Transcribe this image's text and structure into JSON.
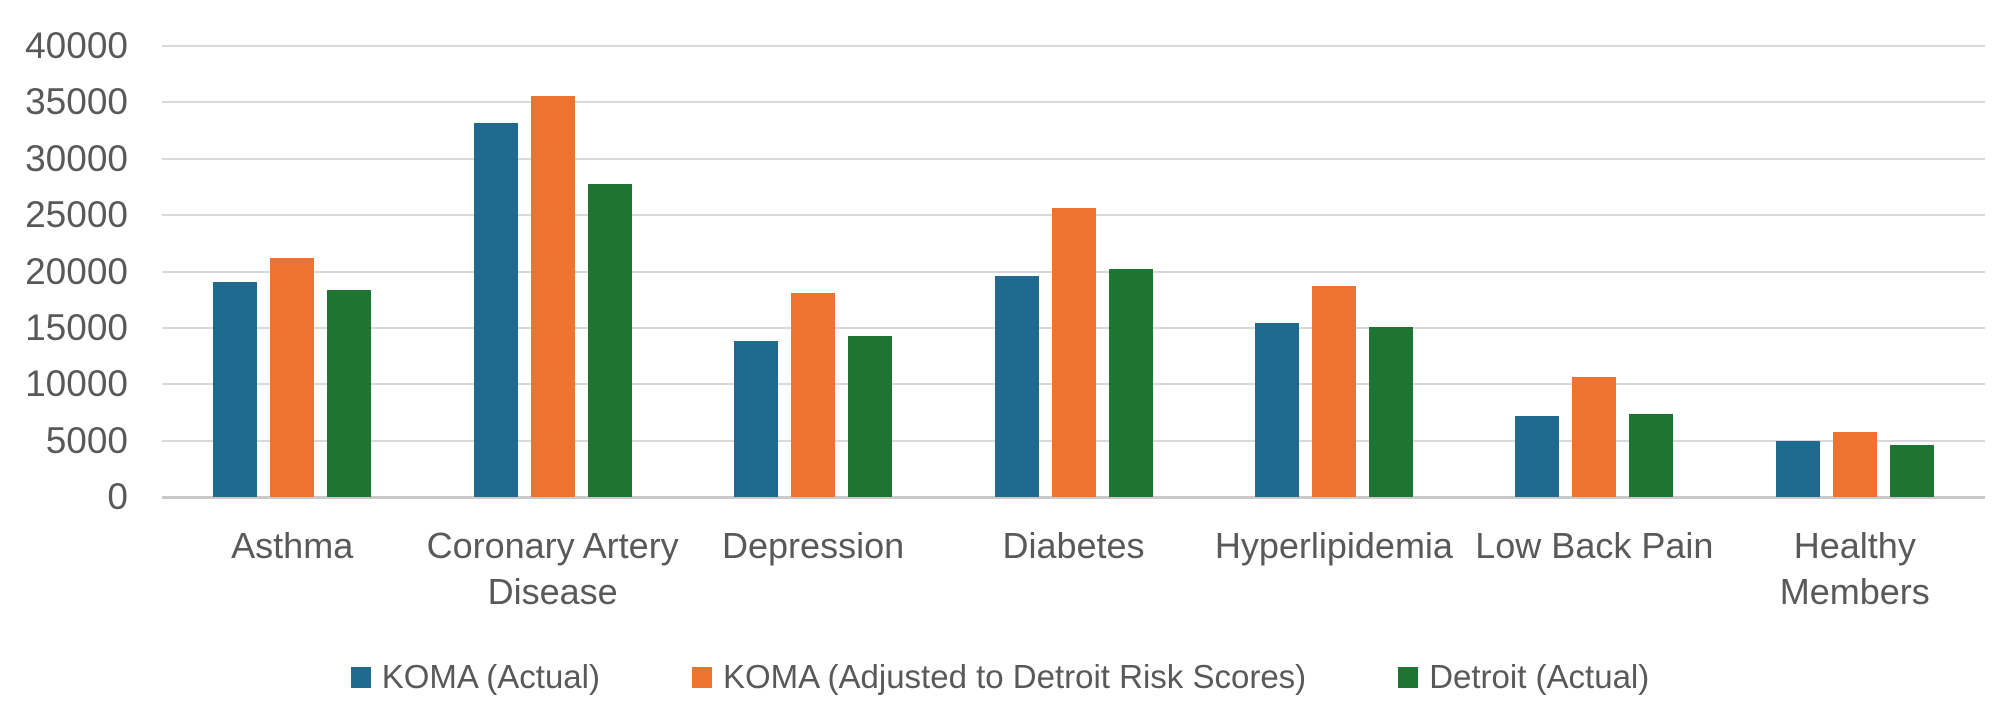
{
  "chart_data": {
    "type": "bar",
    "title": "",
    "categories": [
      "Asthma",
      "Coronary Artery Disease",
      "Depression",
      "Diabetes",
      "Hyperlipidemia",
      "Low Back Pain",
      "Healthy Members"
    ],
    "series": [
      {
        "name": "KOMA (Actual)",
        "color": "#20698F",
        "values": [
          19100,
          33200,
          13800,
          19600,
          15400,
          7200,
          5000
        ]
      },
      {
        "name": "KOMA (Adjusted to Detroit Risk Scores)",
        "color": "#EC7331",
        "values": [
          21200,
          35600,
          18100,
          25600,
          18700,
          10600,
          5800
        ]
      },
      {
        "name": "Detroit (Actual)",
        "color": "#1F7431",
        "values": [
          18400,
          27800,
          14300,
          20200,
          15100,
          7400,
          4600
        ]
      }
    ],
    "xlabel": "",
    "ylabel": "",
    "ylim": [
      0,
      40000
    ],
    "ytick_step": 5000,
    "ytick_labels": [
      "0",
      "5000",
      "10000",
      "15000",
      "20000",
      "25000",
      "30000",
      "35000",
      "40000"
    ],
    "grid": true,
    "legend_position": "bottom"
  },
  "colors": {
    "text": "#595959",
    "gridline": "#D9D9D9",
    "axis_line": "#C9C9C9",
    "background": "#FFFFFF"
  }
}
